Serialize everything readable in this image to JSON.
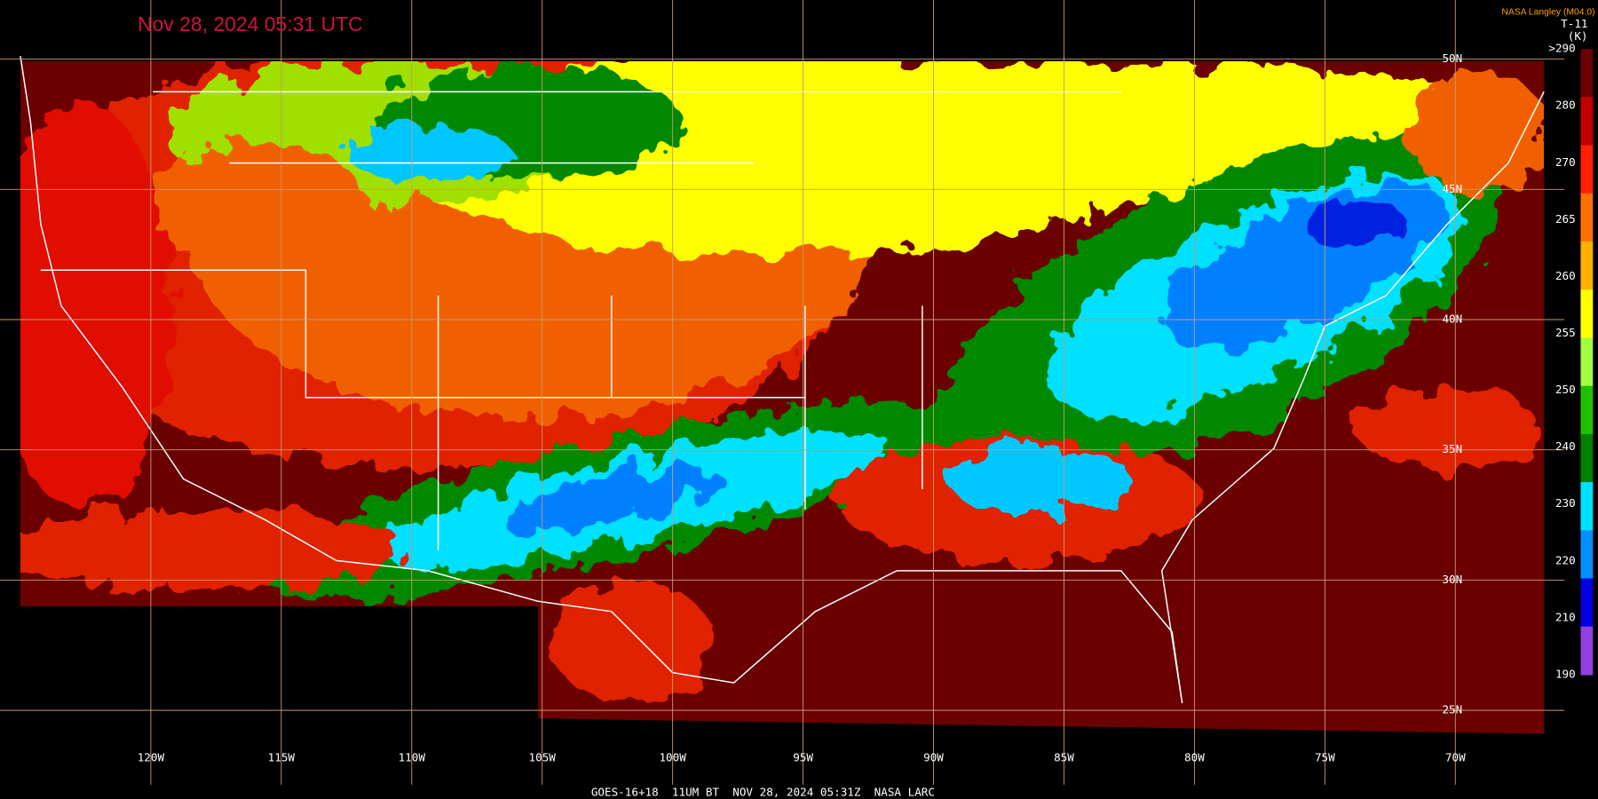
{
  "title": "Nov 28, 2024 05:31 UTC",
  "source": "NASA Langley (M04.0)",
  "legend": {
    "product": "T-11",
    "unit": "(K)",
    "labels": [
      ">290",
      "280",
      "270",
      "265",
      "260",
      "255",
      "250",
      "240",
      "230",
      "220",
      "210",
      "190"
    ]
  },
  "longitudes": [
    "120W",
    "115W",
    "110W",
    "105W",
    "100W",
    "95W",
    "90W",
    "85W",
    "80W",
    "75W",
    "70W"
  ],
  "latitudes": [
    "50N",
    "45N",
    "40N",
    "35N",
    "30N",
    "25N"
  ],
  "footer": "GOES-16+18  11UM BT  NOV 28, 2024 05:31Z  NASA LARC"
}
